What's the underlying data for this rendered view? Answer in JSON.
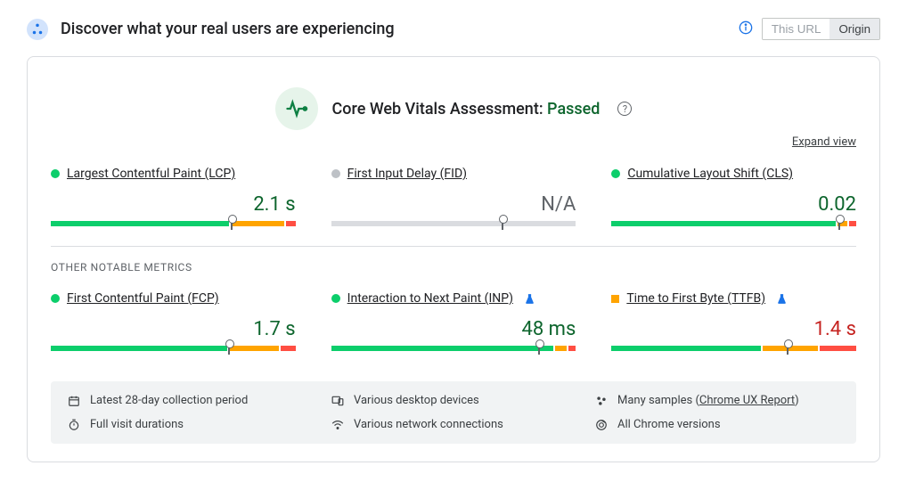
{
  "header": {
    "title": "Discover what your real users are experiencing"
  },
  "scope": {
    "this_url": "This URL",
    "origin": "Origin"
  },
  "assessment": {
    "prefix": "Core Web Vitals Assessment: ",
    "status": "Passed",
    "expand": "Expand view"
  },
  "section": {
    "other": "OTHER NOTABLE METRICS"
  },
  "colors": {
    "good": "#0cce6b",
    "mid": "#ffa400",
    "poor": "#ff4e42",
    "gray": "#dadce0",
    "grayDot": "#bdc1c6"
  },
  "metrics": {
    "lcp": {
      "name": "Largest Contentful Paint (LCP)",
      "value": "2.1 s",
      "valueClass": "val-good",
      "indicator": "dot",
      "indicatorColor": "#0cce6b",
      "bar": {
        "good": 74,
        "mid": 22,
        "poor": 4,
        "gray": false,
        "marker": 74
      }
    },
    "fid": {
      "name": "First Input Delay (FID)",
      "value": "N/A",
      "valueClass": "val-na",
      "indicator": "dot",
      "indicatorColor": "#bdc1c6",
      "bar": {
        "good": 100,
        "mid": 0,
        "poor": 0,
        "gray": true,
        "marker": 70
      }
    },
    "cls": {
      "name": "Cumulative Layout Shift (CLS)",
      "value": "0.02",
      "valueClass": "val-good",
      "indicator": "dot",
      "indicatorColor": "#0cce6b",
      "bar": {
        "good": 93,
        "mid": 4,
        "poor": 3,
        "gray": false,
        "marker": 93
      }
    },
    "fcp": {
      "name": "First Contentful Paint (FCP)",
      "value": "1.7 s",
      "valueClass": "val-good",
      "indicator": "dot",
      "indicatorColor": "#0cce6b",
      "bar": {
        "good": 73,
        "mid": 21,
        "poor": 6,
        "gray": false,
        "marker": 73
      }
    },
    "inp": {
      "name": "Interaction to Next Paint (INP)",
      "value": "48 ms",
      "valueClass": "val-good",
      "indicator": "dot",
      "indicatorColor": "#0cce6b",
      "flask": true,
      "bar": {
        "good": 92,
        "mid": 5,
        "poor": 3,
        "gray": false,
        "marker": 85
      }
    },
    "ttfb": {
      "name": "Time to First Byte (TTFB)",
      "value": "1.4 s",
      "valueClass": "val-warn",
      "indicator": "square",
      "indicatorColor": "#ffa400",
      "flask": true,
      "bar": {
        "good": 62,
        "mid": 23,
        "poor": 15,
        "gray": false,
        "marker": 72
      }
    }
  },
  "footer": {
    "period": "Latest 28-day collection period",
    "devices": "Various desktop devices",
    "samples_prefix": "Many samples (",
    "samples_link": "Chrome UX Report",
    "samples_suffix": ")",
    "visits": "Full visit durations",
    "network": "Various network connections",
    "versions": "All Chrome versions"
  }
}
